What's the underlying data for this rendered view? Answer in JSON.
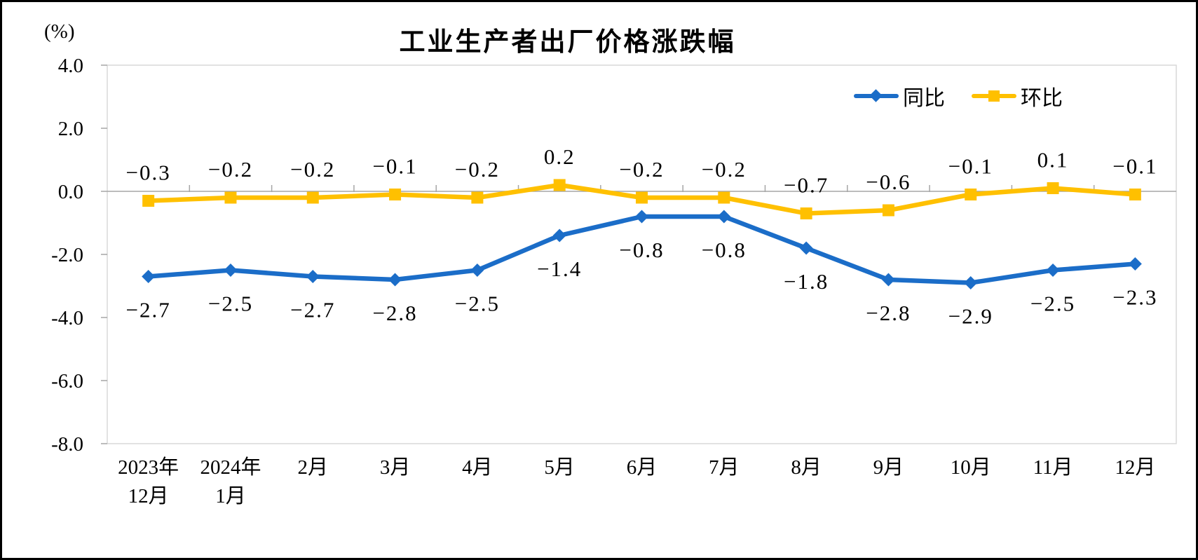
{
  "chart_data": {
    "type": "line",
    "title": "工业生产者出厂价格涨跌幅",
    "y_axis_unit": "(%)",
    "categories": [
      [
        "2023年",
        "12月"
      ],
      [
        "2024年",
        "1月"
      ],
      [
        "2月"
      ],
      [
        "3月"
      ],
      [
        "4月"
      ],
      [
        "5月"
      ],
      [
        "6月"
      ],
      [
        "7月"
      ],
      [
        "8月"
      ],
      [
        "9月"
      ],
      [
        "10月"
      ],
      [
        "11月"
      ],
      [
        "12月"
      ]
    ],
    "ylim": [
      -8,
      4
    ],
    "y_ticks": [
      4,
      2,
      0,
      -2,
      -4,
      -6,
      -8
    ],
    "y_tick_labels": [
      "4.0",
      "2.0",
      "0.0",
      "-2.0",
      "-4.0",
      "-6.0",
      "-8.0"
    ],
    "grid": false,
    "legend_position": "top-right",
    "series": [
      {
        "name": "同比",
        "marker": "diamond",
        "color": "#1B6DC8",
        "values": [
          -2.7,
          -2.5,
          -2.7,
          -2.8,
          -2.5,
          -1.4,
          -0.8,
          -0.8,
          -1.8,
          -2.8,
          -2.9,
          -2.5,
          -2.3
        ],
        "labels": [
          "−2.7",
          "−2.5",
          "−2.7",
          "−2.8",
          "−2.5",
          "−1.4",
          "−0.8",
          "−0.8",
          "−1.8",
          "−2.8",
          "−2.9",
          "−2.5",
          "−2.3"
        ]
      },
      {
        "name": "环比",
        "marker": "square",
        "color": "#FFC000",
        "values": [
          -0.3,
          -0.2,
          -0.2,
          -0.1,
          -0.2,
          0.2,
          -0.2,
          -0.2,
          -0.7,
          -0.6,
          -0.1,
          0.1,
          -0.1
        ],
        "labels": [
          "−0.3",
          "−0.2",
          "−0.2",
          "−0.1",
          "−0.2",
          "0.2",
          "−0.2",
          "−0.2",
          "−0.7",
          "−0.6",
          "−0.1",
          "0.1",
          "−0.1"
        ]
      }
    ]
  },
  "colors": {
    "background": "#FFFFFF",
    "frame": "#000000",
    "text": "#000000",
    "plot_border": "#D9D9D9",
    "axis_line": "#A6A6A6",
    "tick": "#A6A6A6"
  }
}
